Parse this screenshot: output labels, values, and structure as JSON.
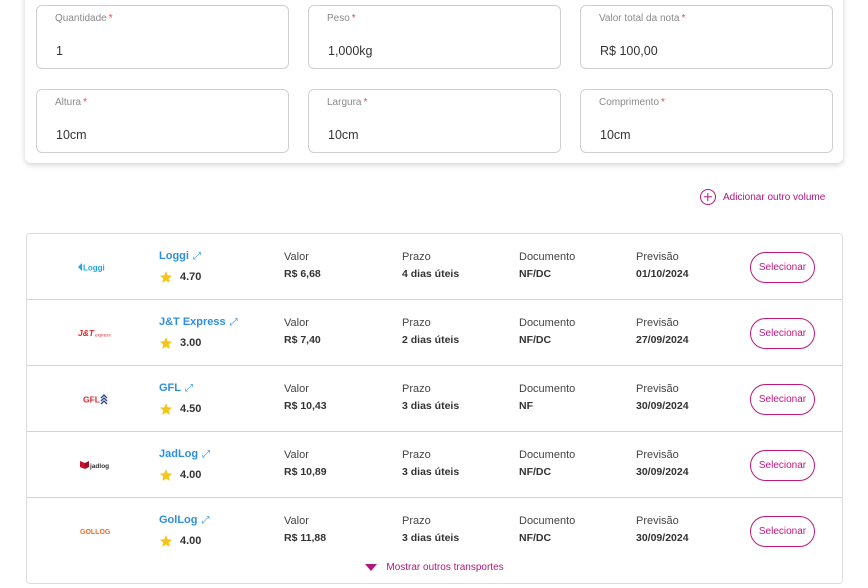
{
  "form": {
    "fields": [
      {
        "label": "Quantidade",
        "required": "*",
        "value": "1"
      },
      {
        "label": "Peso",
        "required": "*",
        "value": "1,000kg"
      },
      {
        "label": "Valor total da nota",
        "required": "*",
        "value": "R$ 100,00"
      },
      {
        "label": "Altura",
        "required": "*",
        "value": "10cm"
      },
      {
        "label": "Largura",
        "required": "*",
        "value": "10cm"
      },
      {
        "label": "Comprimento",
        "required": "*",
        "value": "10cm"
      }
    ],
    "add_volume_label": "Adicionar outro volume"
  },
  "columns": {
    "valor": "Valor",
    "prazo": "Prazo",
    "documento": "Documento",
    "previsao": "Previsão"
  },
  "carriers": [
    {
      "name": "Loggi",
      "logo_text": "Loggi",
      "logo_color": "#1ea6e8",
      "rating": "4.70",
      "valor": "R$ 6,68",
      "prazo": "4 dias úteis",
      "documento": "NF/DC",
      "previsao": "01/10/2024",
      "button": "Selecionar"
    },
    {
      "name": "J&T Express",
      "logo_text": "J&T",
      "logo_sub": "express",
      "logo_color": "#e0262d",
      "rating": "3.00",
      "valor": "R$ 7,40",
      "prazo": "2 dias úteis",
      "documento": "NF/DC",
      "previsao": "27/09/2024",
      "button": "Selecionar"
    },
    {
      "name": "GFL",
      "logo_text": "GFL",
      "logo_color": "#e0262d",
      "logo_color2": "#2a3f8f",
      "rating": "4.50",
      "valor": "R$ 10,43",
      "prazo": "3 dias úteis",
      "documento": "NF",
      "previsao": "30/09/2024",
      "button": "Selecionar"
    },
    {
      "name": "JadLog",
      "logo_text": "jadlog",
      "logo_color": "#c8102e",
      "rating": "4.00",
      "valor": "R$ 10,89",
      "prazo": "3 dias úteis",
      "documento": "NF/DC",
      "previsao": "30/09/2024",
      "button": "Selecionar"
    },
    {
      "name": "GolLog",
      "logo_text": "GOLLOG",
      "logo_color": "#f26b21",
      "rating": "4.00",
      "valor": "R$ 11,88",
      "prazo": "3 dias úteis",
      "documento": "NF/DC",
      "previsao": "30/09/2024",
      "button": "Selecionar"
    }
  ],
  "show_more_label": "Mostrar outros transportes",
  "colors": {
    "accent": "#c2187c",
    "link": "#2e8fe0",
    "star": "#f5c518",
    "required": "#e5484d"
  },
  "icons": {
    "external_link": "expand-arrow-icon",
    "rating": "star-icon",
    "add": "plus-circle-icon",
    "expand": "triangle-down-icon"
  }
}
